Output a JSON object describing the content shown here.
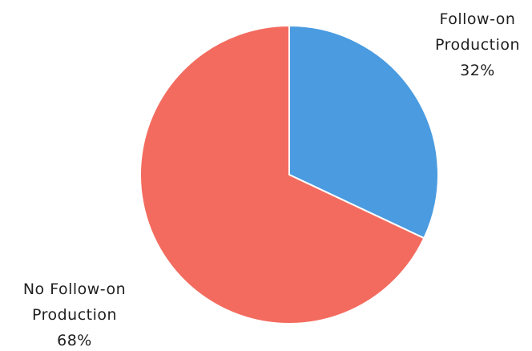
{
  "chart_data": {
    "type": "pie",
    "slices": [
      {
        "label_lines": [
          "Follow-on",
          "Production"
        ],
        "percent_label": "32%",
        "value": 32,
        "color": "#4a9be0"
      },
      {
        "label_lines": [
          "No Follow-on",
          "Production"
        ],
        "percent_label": "68%",
        "value": 68,
        "color": "#f36b5f"
      }
    ],
    "start_angle_deg": 0,
    "direction": "clockwise",
    "slice_border_color": "#ffffff",
    "legend": "none"
  }
}
